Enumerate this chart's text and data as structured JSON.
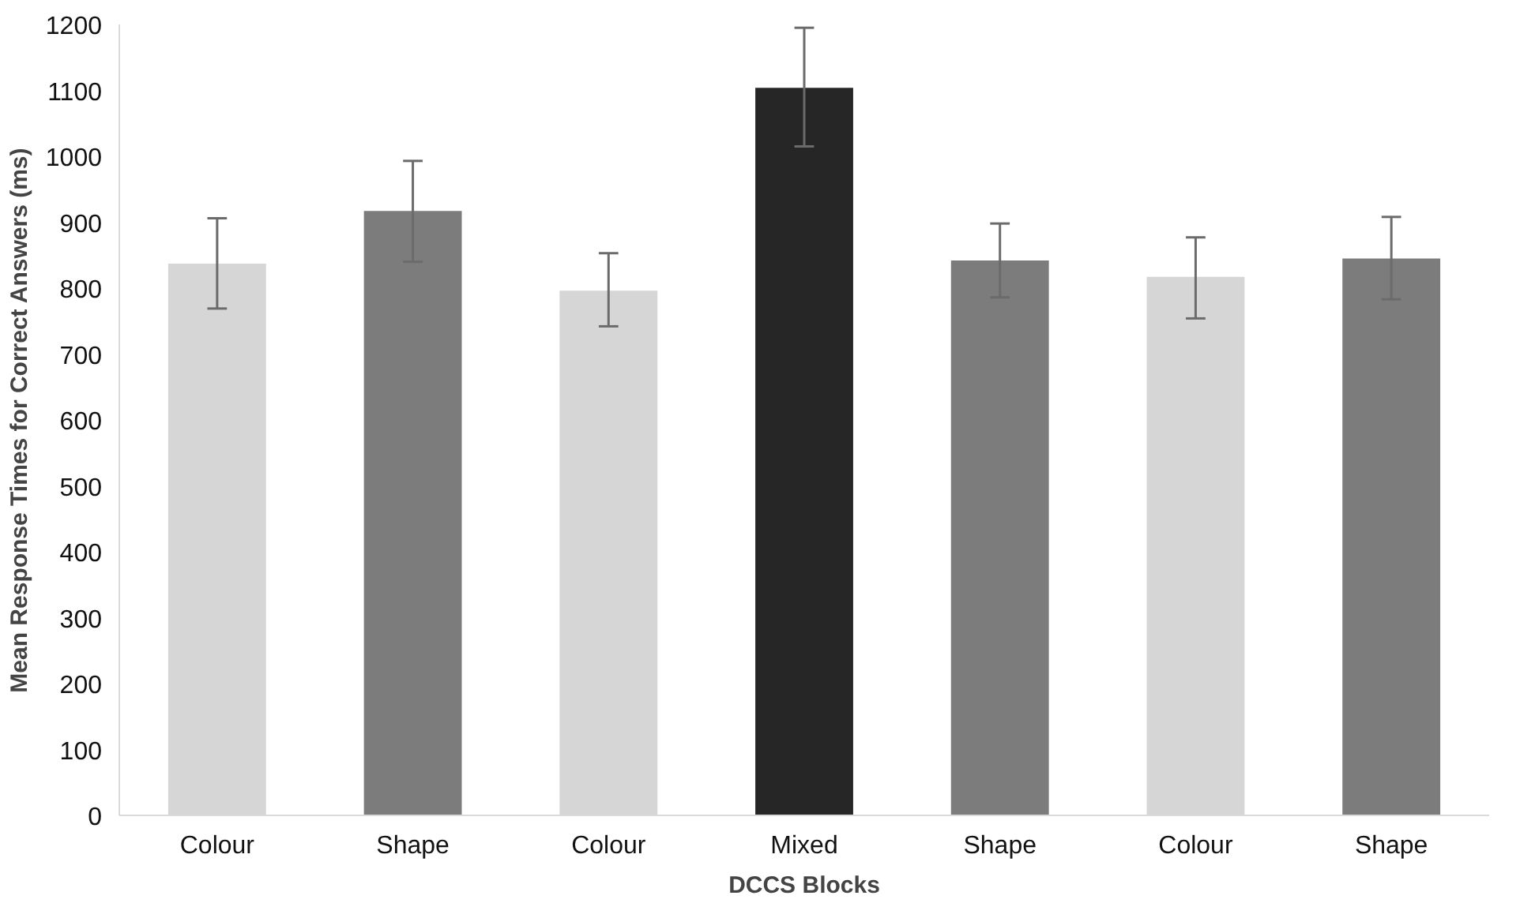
{
  "chart_data": {
    "type": "bar",
    "xlabel": "DCCS Blocks",
    "ylabel": "Mean Response Times for Correct Answers (ms)",
    "categories": [
      "Colour",
      "Shape",
      "Colour",
      "Mixed",
      "Shape",
      "Colour",
      "Shape"
    ],
    "values": [
      837,
      917,
      796,
      1104,
      842,
      817,
      845
    ],
    "colors": [
      "#d6d6d6",
      "#7c7c7c",
      "#d6d6d6",
      "#262626",
      "#7c7c7c",
      "#d6d6d6",
      "#7c7c7c"
    ],
    "errors": [
      [
        769,
        906
      ],
      [
        840,
        993
      ],
      [
        742,
        853
      ],
      [
        1015,
        1195
      ],
      [
        786,
        898
      ],
      [
        754,
        877
      ],
      [
        783,
        908
      ]
    ],
    "ylim": [
      0,
      1200
    ],
    "yticks": [
      0,
      100,
      200,
      300,
      400,
      500,
      600,
      700,
      800,
      900,
      1000,
      1100,
      1200
    ],
    "grid": false
  }
}
